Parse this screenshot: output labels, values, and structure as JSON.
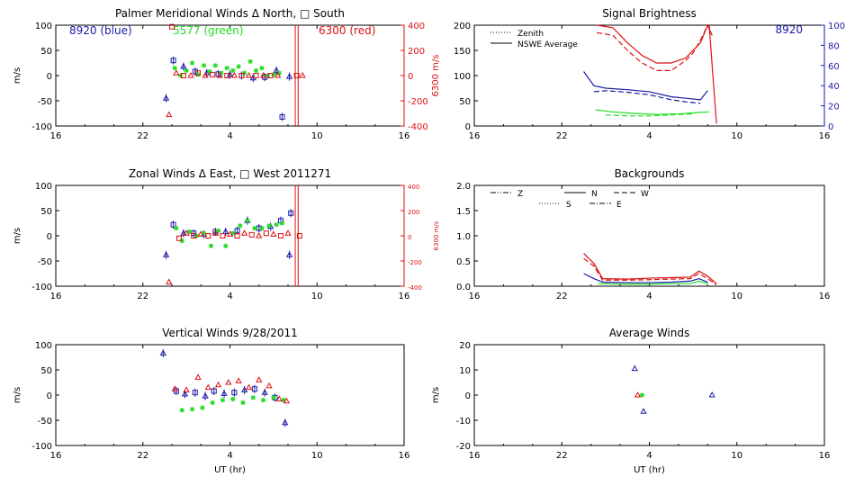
{
  "colors": {
    "blue": "#1a1aa8",
    "green": "#22dd22",
    "red": "#dd1111",
    "axis": "#000000"
  },
  "chart_data": [
    {
      "id": "meridional",
      "type": "scatter",
      "title": "Palmer Meridional Winds Δ North, □ South",
      "ylabel": "m/s",
      "xlim": [
        16,
        40
      ],
      "xticks": [
        16,
        22,
        28,
        34,
        40
      ],
      "xticklabels": [
        "16",
        "22",
        "4",
        "10",
        "16"
      ],
      "ylim": [
        -100,
        100
      ],
      "yticks": [
        -100,
        -50,
        0,
        50,
        100
      ],
      "right_axis": {
        "label": "6300 m/s",
        "color": "red",
        "ylim": [
          -400,
          400
        ],
        "ticks": [
          -400,
          -200,
          0,
          200,
          400
        ]
      },
      "annotations": [
        {
          "text": "8920 (blue)",
          "color": "blue"
        },
        {
          "text": "5577 (green)",
          "color": "green"
        },
        {
          "text": "6300 (red)",
          "color": "red"
        }
      ],
      "series": [
        {
          "color": "blue",
          "x": [
            23.6,
            24.1,
            24.8,
            25.6,
            26.4,
            27.2,
            28.0,
            28.8,
            29.6,
            30.4,
            31.2,
            31.6,
            32.1
          ],
          "y": [
            -45,
            30,
            18,
            8,
            5,
            3,
            2,
            0,
            -5,
            -3,
            10,
            -82,
            -2
          ]
        },
        {
          "color": "green",
          "x": [
            24.2,
            24.6,
            25.0,
            25.4,
            25.8,
            26.2,
            26.6,
            27.0,
            27.4,
            27.8,
            28.2,
            28.6,
            29.0,
            29.4,
            29.8,
            30.2,
            30.6,
            31.0,
            31.4
          ],
          "y": [
            15,
            0,
            10,
            25,
            2,
            20,
            8,
            20,
            5,
            15,
            10,
            18,
            5,
            28,
            10,
            15,
            0,
            2,
            5
          ]
        },
        {
          "color": "red",
          "x": [
            23.8,
            24.0,
            24.3,
            24.8,
            25.3,
            25.8,
            26.3,
            26.8,
            27.3,
            27.8,
            28.3,
            28.8,
            29.3,
            29.8,
            30.3,
            30.8,
            31.3,
            32.6,
            33.0
          ],
          "y": [
            -78,
            97,
            5,
            0,
            0,
            5,
            0,
            2,
            0,
            0,
            0,
            0,
            0,
            0,
            0,
            0,
            0,
            0,
            0
          ]
        }
      ],
      "vlines": [
        {
          "x": 32.5,
          "color": "red"
        },
        {
          "x": 32.7,
          "color": "red"
        }
      ]
    },
    {
      "id": "brightness",
      "type": "line",
      "title": "Signal Brightness",
      "xlim": [
        16,
        40
      ],
      "xticks": [
        16,
        22,
        28,
        34,
        40
      ],
      "xticklabels": [
        "16",
        "22",
        "4",
        "10",
        "16"
      ],
      "ylim": [
        0,
        200
      ],
      "yticks": [
        0,
        50,
        100,
        150,
        200
      ],
      "right_axis": {
        "label": "",
        "color": "blue",
        "ylim": [
          0,
          100
        ],
        "ticks": [
          0,
          20,
          40,
          60,
          80,
          100
        ]
      },
      "annotations": [
        {
          "text": "8920",
          "color": "blue"
        }
      ],
      "legend": [
        "Zenith",
        "NSWE Average"
      ],
      "series": [
        {
          "color": "red",
          "style": "solid",
          "x": [
            24.4,
            25.5,
            26.5,
            27.5,
            28.5,
            29.5,
            30.5,
            31.5,
            32.0,
            32.3
          ],
          "y": [
            200,
            195,
            165,
            140,
            125,
            125,
            135,
            165,
            200,
            180
          ]
        },
        {
          "color": "red",
          "style": "dashed",
          "x": [
            24.4,
            25.5,
            26.5,
            27.5,
            28.5,
            29.5,
            30.5,
            31.0,
            31.5,
            32.0,
            32.3
          ],
          "y": [
            185,
            180,
            150,
            125,
            110,
            110,
            130,
            145,
            170,
            200,
            180
          ]
        },
        {
          "color": "red",
          "style": "solid",
          "x": [
            32.1,
            32.6
          ],
          "y": [
            200,
            5
          ]
        },
        {
          "color": "blue",
          "style": "solid",
          "x": [
            23.5,
            24.2,
            25.0,
            26.5,
            28.0,
            29.5,
            30.5,
            31.5,
            32.0
          ],
          "y": [
            108,
            80,
            75,
            72,
            68,
            58,
            55,
            52,
            70
          ]
        },
        {
          "color": "blue",
          "style": "dashed",
          "x": [
            24.2,
            25.0,
            26.5,
            28.0,
            29.5,
            30.5,
            31.5
          ],
          "y": [
            68,
            70,
            67,
            62,
            52,
            48,
            45
          ]
        },
        {
          "color": "green",
          "style": "solid",
          "x": [
            24.3,
            25.5,
            27.0,
            28.5,
            30.0,
            31.5,
            32.1
          ],
          "y": [
            32,
            28,
            25,
            23,
            24,
            27,
            28
          ]
        },
        {
          "color": "green",
          "style": "dashed",
          "x": [
            25.0,
            26.5,
            28.0,
            29.5,
            31.0
          ],
          "y": [
            22,
            20,
            20,
            22,
            24
          ]
        }
      ]
    },
    {
      "id": "zonal",
      "type": "scatter",
      "title": "Zonal Winds Δ East, □ West 2011271",
      "ylabel": "m/s",
      "xlim": [
        16,
        40
      ],
      "xticks": [
        16,
        22,
        28,
        34,
        40
      ],
      "xticklabels": [
        "16",
        "22",
        "4",
        "10",
        "16"
      ],
      "ylim": [
        -100,
        100
      ],
      "yticks": [
        -100,
        -50,
        0,
        50,
        100
      ],
      "right_axis": {
        "label": "6300 m/s",
        "color": "red",
        "ylim": [
          -400,
          400
        ],
        "ticks": [
          -400,
          -200,
          0,
          200,
          400
        ]
      },
      "series": [
        {
          "color": "blue",
          "x": [
            23.6,
            24.1,
            24.8,
            25.5,
            26.2,
            27.0,
            27.7,
            28.5,
            29.2,
            30.0,
            30.8,
            31.5,
            32.1,
            32.2
          ],
          "y": [
            -38,
            22,
            5,
            5,
            3,
            8,
            8,
            10,
            30,
            15,
            18,
            30,
            -38,
            45
          ]
        },
        {
          "color": "green",
          "x": [
            24.3,
            24.7,
            25.2,
            25.7,
            26.2,
            26.7,
            27.2,
            27.7,
            28.2,
            28.7,
            29.2,
            29.7,
            30.2,
            30.7,
            31.2,
            31.6
          ],
          "y": [
            15,
            -10,
            8,
            0,
            5,
            -20,
            10,
            -20,
            5,
            20,
            30,
            15,
            15,
            20,
            22,
            25
          ]
        },
        {
          "color": "red",
          "x": [
            23.8,
            24.5,
            25.0,
            25.5,
            26.0,
            26.5,
            27.0,
            27.5,
            28.0,
            28.5,
            29.0,
            29.5,
            30.0,
            30.5,
            31.0,
            31.5,
            32.0,
            32.8
          ],
          "y": [
            -92,
            -5,
            5,
            0,
            3,
            0,
            5,
            0,
            3,
            0,
            5,
            2,
            0,
            5,
            3,
            0,
            5,
            0
          ]
        }
      ],
      "vlines": [
        {
          "x": 32.5,
          "color": "red"
        },
        {
          "x": 32.7,
          "color": "red"
        }
      ]
    },
    {
      "id": "backgrounds",
      "type": "line",
      "title": "Backgrounds",
      "xlim": [
        16,
        40
      ],
      "xticks": [
        16,
        22,
        28,
        34,
        40
      ],
      "xticklabels": [
        "16",
        "22",
        "4",
        "10",
        "16"
      ],
      "ylim": [
        0,
        2.0
      ],
      "yticks": [
        0,
        0.5,
        1.0,
        1.5,
        2.0
      ],
      "yticklabels": [
        "0.0",
        "0.5",
        "1.0",
        "1.5",
        "2.0"
      ],
      "legend": [
        "Z",
        "N",
        "W",
        "S",
        "E"
      ],
      "series": [
        {
          "color": "red",
          "style": "solid",
          "x": [
            23.5,
            24.2,
            24.8,
            26.5,
            28.0,
            29.5,
            30.8,
            31.4,
            32.0,
            32.6
          ],
          "y": [
            0.65,
            0.45,
            0.15,
            0.14,
            0.16,
            0.17,
            0.18,
            0.3,
            0.2,
            0.05
          ]
        },
        {
          "color": "red",
          "style": "dashed",
          "x": [
            23.5,
            24.2,
            24.8,
            26.5,
            28.0,
            29.5,
            30.8,
            31.4,
            32.0,
            32.6
          ],
          "y": [
            0.55,
            0.4,
            0.12,
            0.12,
            0.13,
            0.14,
            0.15,
            0.25,
            0.15,
            0.03
          ]
        },
        {
          "color": "blue",
          "style": "solid",
          "x": [
            23.5,
            24.2,
            24.8,
            26.5,
            28.0,
            29.5,
            30.8,
            31.4,
            32.0
          ],
          "y": [
            0.25,
            0.15,
            0.08,
            0.07,
            0.07,
            0.08,
            0.1,
            0.15,
            0.08
          ]
        },
        {
          "color": "green",
          "style": "solid",
          "x": [
            24.5,
            26.5,
            28.0,
            29.5,
            30.8,
            31.4,
            32.0
          ],
          "y": [
            0.05,
            0.04,
            0.04,
            0.05,
            0.05,
            0.1,
            0.05
          ]
        }
      ]
    },
    {
      "id": "vertical",
      "type": "scatter",
      "title": "Vertical Winds 9/28/2011",
      "ylabel": "m/s",
      "xlabel": "UT (hr)",
      "xlim": [
        16,
        40
      ],
      "xticks": [
        16,
        22,
        28,
        34,
        40
      ],
      "xticklabels": [
        "16",
        "22",
        "4",
        "10",
        "16"
      ],
      "ylim": [
        -100,
        100
      ],
      "yticks": [
        -100,
        -50,
        0,
        50,
        100
      ],
      "series": [
        {
          "color": "blue",
          "x": [
            23.4,
            24.3,
            24.9,
            25.6,
            26.3,
            26.9,
            27.6,
            28.3,
            29.0,
            29.7,
            30.4,
            31.1,
            31.8
          ],
          "y": [
            83,
            8,
            2,
            5,
            -2,
            8,
            3,
            5,
            10,
            12,
            5,
            -5,
            -55
          ]
        },
        {
          "color": "green",
          "x": [
            24.7,
            25.4,
            26.1,
            26.8,
            27.5,
            28.2,
            28.9,
            29.6,
            30.3,
            31.0,
            31.7
          ],
          "y": [
            -30,
            -28,
            -25,
            -15,
            -10,
            -8,
            -15,
            -5,
            -10,
            -5,
            -10
          ]
        },
        {
          "color": "red",
          "x": [
            24.2,
            25.0,
            25.8,
            26.5,
            27.2,
            27.9,
            28.6,
            29.3,
            30.0,
            30.7,
            31.4,
            31.9
          ],
          "y": [
            12,
            10,
            35,
            15,
            20,
            25,
            28,
            15,
            30,
            18,
            -8,
            -12
          ]
        }
      ]
    },
    {
      "id": "average",
      "type": "scatter",
      "title": "Average Winds",
      "ylabel": "m/s",
      "xlabel": "UT (hr)",
      "xlim": [
        16,
        40
      ],
      "xticks": [
        16,
        22,
        28,
        34,
        40
      ],
      "xticklabels": [
        "16",
        "22",
        "4",
        "10",
        "16"
      ],
      "ylim": [
        -20,
        20
      ],
      "yticks": [
        -20,
        -10,
        0,
        10,
        20
      ],
      "series": [
        {
          "color": "blue",
          "x": [
            27.0,
            27.6,
            32.3
          ],
          "y": [
            10.5,
            -6.5,
            0
          ]
        },
        {
          "color": "green",
          "x": [
            27.5
          ],
          "y": [
            0
          ]
        },
        {
          "color": "red",
          "x": [
            27.2
          ],
          "y": [
            0
          ]
        }
      ]
    }
  ]
}
